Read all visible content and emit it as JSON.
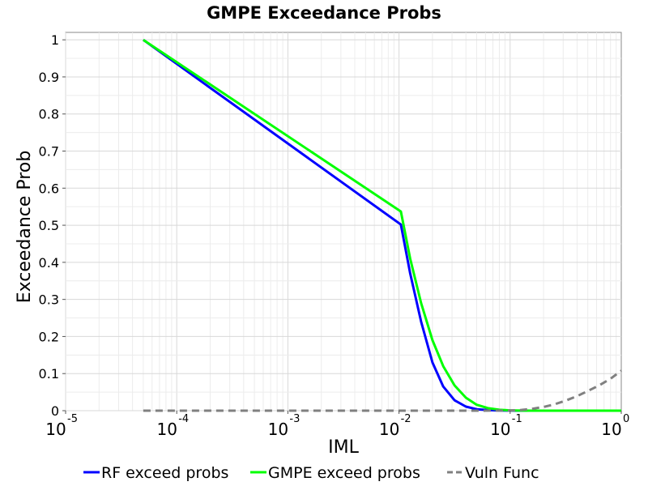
{
  "chart_data": {
    "type": "line",
    "title": "GMPE Exceedance Probs",
    "xlabel": "IML",
    "ylabel": "Exceedance Prob",
    "xscale": "log",
    "xlim": [
      1e-05,
      1
    ],
    "ylim": [
      0,
      1.02
    ],
    "grid": true,
    "legend_position": "bottom",
    "x_ticks": [
      {
        "base": "10",
        "exp": "-5",
        "value": 1e-05
      },
      {
        "base": "10",
        "exp": "-4",
        "value": 0.0001
      },
      {
        "base": "10",
        "exp": "-3",
        "value": 0.001
      },
      {
        "base": "10",
        "exp": "-2",
        "value": 0.01
      },
      {
        "base": "10",
        "exp": "-1",
        "value": 0.1
      },
      {
        "base": "10",
        "exp": "0",
        "value": 1
      }
    ],
    "y_ticks": [
      "0",
      "0.1",
      "0.2",
      "0.3",
      "0.4",
      "0.5",
      "0.6",
      "0.7",
      "0.8",
      "0.9",
      "1"
    ],
    "series": [
      {
        "name": "RF exceed probs",
        "color": "#0000ff",
        "dash": "solid",
        "x": [
          5e-05,
          0.0104,
          0.0126,
          0.0158,
          0.02,
          0.025,
          0.0316,
          0.04,
          0.05,
          0.063,
          0.08,
          0.1,
          0.126,
          0.158,
          0.2,
          0.25,
          0.316,
          0.4,
          0.5,
          0.63,
          0.8,
          1
        ],
        "y": [
          1.0,
          0.502,
          0.37,
          0.24,
          0.13,
          0.065,
          0.028,
          0.011,
          0.004,
          0.0015,
          0.0005,
          0.0002,
          0,
          0,
          0,
          0,
          0,
          0,
          0,
          0,
          0,
          0
        ]
      },
      {
        "name": "GMPE exceed probs",
        "color": "#00ff00",
        "dash": "solid",
        "x": [
          5e-05,
          0.0104,
          0.0126,
          0.0158,
          0.02,
          0.025,
          0.0316,
          0.04,
          0.05,
          0.063,
          0.08,
          0.1,
          0.126,
          0.158,
          0.2,
          0.25,
          0.316,
          0.4,
          0.5,
          0.63,
          0.8,
          1
        ],
        "y": [
          1.0,
          0.537,
          0.41,
          0.29,
          0.19,
          0.12,
          0.068,
          0.035,
          0.016,
          0.007,
          0.0025,
          0.0008,
          0.0002,
          0,
          0,
          0,
          0,
          0,
          0,
          0,
          0,
          0
        ]
      },
      {
        "name": "Vuln Func",
        "color": "#808080",
        "dash": "dashed",
        "x": [
          5e-05,
          0.0001,
          0.001,
          0.01,
          0.05,
          0.1,
          0.126,
          0.158,
          0.2,
          0.25,
          0.316,
          0.4,
          0.5,
          0.63,
          0.8,
          1
        ],
        "y": [
          0,
          0,
          0,
          0,
          0,
          0.0005,
          0.002,
          0.005,
          0.01,
          0.017,
          0.027,
          0.039,
          0.053,
          0.068,
          0.086,
          0.108
        ]
      }
    ]
  }
}
